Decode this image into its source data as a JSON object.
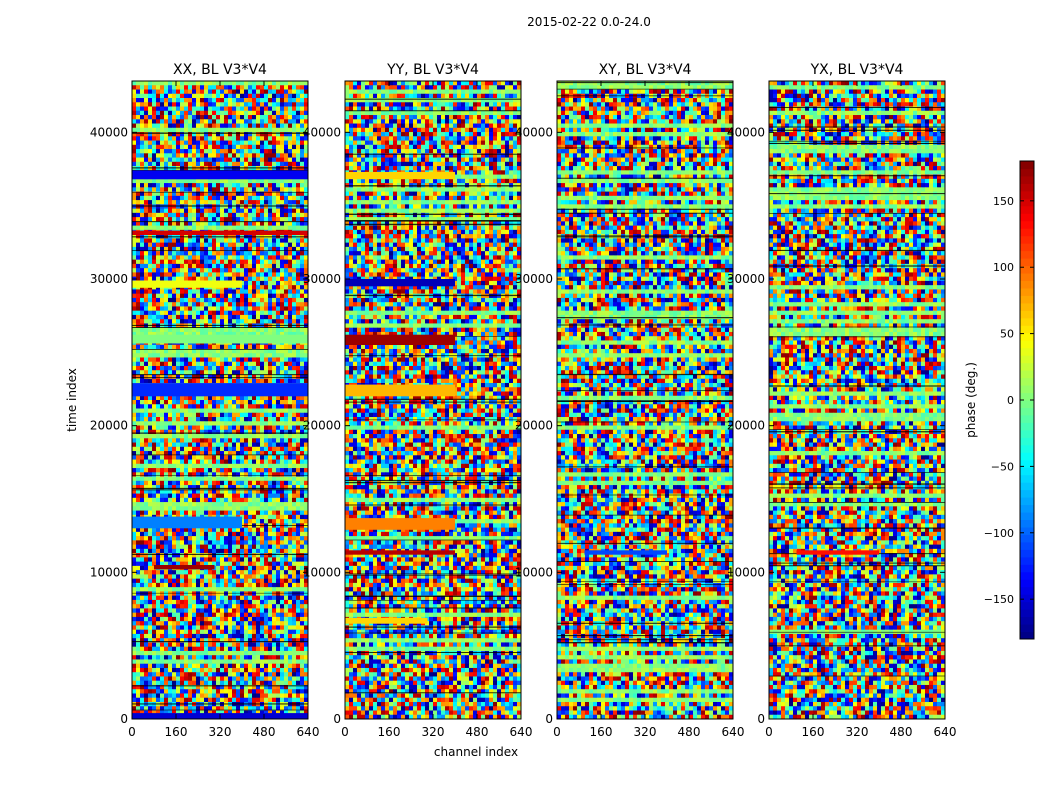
{
  "figure": {
    "suptitle": "2015-02-22 0.0-24.0",
    "xlabel": "channel index",
    "ylabel": "time index",
    "colorbar_label": "phase (deg.)"
  },
  "chart_data": [
    {
      "type": "heatmap",
      "title": "XX, BL V3*V4",
      "xlim": [
        0,
        640
      ],
      "ylim": [
        0,
        43500
      ],
      "xticks": [
        0,
        160,
        320,
        480,
        640
      ],
      "yticks": [
        0,
        10000,
        20000,
        30000,
        40000
      ],
      "bands": [
        {
          "y": [
            0,
            400
          ],
          "x": [
            0,
            640
          ],
          "value": -150
        },
        {
          "y": [
            36800,
            37400
          ],
          "x": [
            0,
            640
          ],
          "value": -140
        },
        {
          "y": [
            33000,
            33300
          ],
          "x": [
            0,
            640
          ],
          "value": 150
        },
        {
          "y": [
            29400,
            29900
          ],
          "x": [
            0,
            400
          ],
          "value": 40
        },
        {
          "y": [
            25600,
            26200
          ],
          "x": [
            0,
            640
          ],
          "value": 0
        },
        {
          "y": [
            22000,
            22900
          ],
          "x": [
            0,
            640
          ],
          "value": -120
        },
        {
          "y": [
            13000,
            13800
          ],
          "x": [
            0,
            400
          ],
          "value": -90
        },
        {
          "y": [
            10200,
            10500
          ],
          "x": [
            80,
            300
          ],
          "value": 170
        }
      ]
    },
    {
      "type": "heatmap",
      "title": "YY, BL V3*V4",
      "xlim": [
        0,
        640
      ],
      "ylim": [
        0,
        43500
      ],
      "xticks": [
        0,
        160,
        320,
        480,
        640
      ],
      "yticks": [
        0,
        10000,
        20000,
        30000,
        40000
      ],
      "bands": [
        {
          "y": [
            36800,
            37300
          ],
          "x": [
            0,
            400
          ],
          "value": 60
        },
        {
          "y": [
            29500,
            30000
          ],
          "x": [
            0,
            400
          ],
          "value": -160
        },
        {
          "y": [
            25500,
            26200
          ],
          "x": [
            0,
            400
          ],
          "value": 170
        },
        {
          "y": [
            22000,
            22800
          ],
          "x": [
            0,
            400
          ],
          "value": 70
        },
        {
          "y": [
            12900,
            13700
          ],
          "x": [
            0,
            400
          ],
          "value": 90
        },
        {
          "y": [
            11200,
            11500
          ],
          "x": [
            0,
            400
          ],
          "value": 160
        },
        {
          "y": [
            6500,
            6900
          ],
          "x": [
            0,
            300
          ],
          "value": 60
        }
      ]
    },
    {
      "type": "heatmap",
      "title": "XY, BL V3*V4",
      "xlim": [
        0,
        640
      ],
      "ylim": [
        0,
        43500
      ],
      "xticks": [
        0,
        160,
        320,
        480,
        640
      ],
      "yticks": [
        0,
        10000,
        20000,
        30000,
        40000
      ],
      "bands": [
        {
          "y": [
            11200,
            11500
          ],
          "x": [
            100,
            400
          ],
          "value": -110
        }
      ]
    },
    {
      "type": "heatmap",
      "title": "YX, BL V3*V4",
      "xlim": [
        0,
        640
      ],
      "ylim": [
        0,
        43500
      ],
      "xticks": [
        0,
        160,
        320,
        480,
        640
      ],
      "yticks": [
        0,
        10000,
        20000,
        30000,
        40000
      ],
      "bands": [
        {
          "y": [
            11200,
            11500
          ],
          "x": [
            100,
            400
          ],
          "value": 130
        }
      ]
    }
  ],
  "colorbar": {
    "range": [
      -180,
      180
    ],
    "ticks": [
      -150,
      -100,
      -50,
      0,
      50,
      100,
      150
    ],
    "colormap": "jet"
  }
}
